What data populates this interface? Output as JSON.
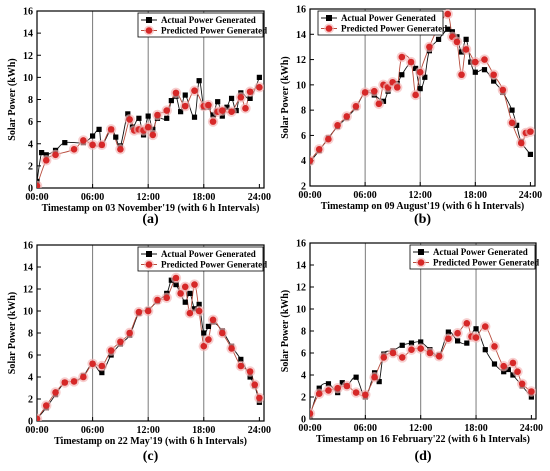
{
  "chart_data": [
    {
      "type": "line",
      "panel_label": "(a)",
      "xlabel": "Timestamp on 03 November'19 (with 6 h Intervals)",
      "ylabel": "Solar Power (kWh)",
      "xlim": [
        0,
        24.5
      ],
      "ylim": [
        0,
        16
      ],
      "xticks": [
        "00:00",
        "06:00",
        "12:00",
        "18:00",
        "24:00"
      ],
      "yticks": [
        "0",
        "2",
        "4",
        "6",
        "8",
        "10",
        "12",
        "14",
        "16"
      ],
      "vertical_gridlines_at_hours": [
        6,
        12,
        18
      ],
      "legend": "top-right",
      "series": [
        {
          "name": "Actual Power Generated",
          "x": [
            0,
            0.5,
            1,
            2,
            3,
            5,
            6,
            6.7,
            7,
            8,
            8.5,
            9,
            9.8,
            10.3,
            11,
            11.5,
            12,
            12.5,
            13,
            14,
            14.5,
            15,
            15.5,
            16,
            17,
            17.5,
            18,
            18.5,
            19,
            19.5,
            20,
            20.5,
            21,
            21.5,
            22,
            23,
            24
          ],
          "y": [
            0.6,
            3.2,
            3.0,
            3.4,
            4.1,
            4.1,
            4.7,
            5.3,
            3.9,
            5.3,
            4.6,
            3.8,
            6.7,
            5.5,
            6.3,
            4.8,
            6.5,
            5.3,
            6.3,
            6.3,
            7.9,
            8.3,
            6.9,
            8.4,
            6.4,
            9.7,
            7.3,
            7.3,
            6.6,
            7.8,
            6.5,
            7.3,
            8.1,
            7.0,
            8.6,
            8.1,
            10.0
          ]
        },
        {
          "name": "Predicted Power Generated",
          "x": [
            0,
            1,
            2,
            4,
            5,
            6,
            7,
            8,
            9,
            10,
            10.5,
            11,
            11.5,
            12,
            12.5,
            13,
            14,
            15,
            16,
            17,
            18,
            18.5,
            19,
            19.5,
            20,
            21,
            22,
            22.5,
            23,
            24
          ],
          "y": [
            0.2,
            2.5,
            3.0,
            3.5,
            4.3,
            3.9,
            3.9,
            5.3,
            3.5,
            6.2,
            5.2,
            5.3,
            5.2,
            5.5,
            4.8,
            6.6,
            7.0,
            8.6,
            7.4,
            8.8,
            7.4,
            7.5,
            6.0,
            6.9,
            7.0,
            6.9,
            8.2,
            7.2,
            8.7,
            9.1
          ]
        }
      ]
    },
    {
      "type": "line",
      "panel_label": "(b)",
      "xlabel": "Timestamp on 09 August'19 (with 6 h Intervals)",
      "ylabel": "Solar Power (kWh)",
      "xlim": [
        0,
        24.5
      ],
      "ylim": [
        2,
        16
      ],
      "xticks": [
        "00:00",
        "06:00",
        "12:00",
        "18:00",
        "24:00"
      ],
      "yticks": [
        "2",
        "4",
        "6",
        "8",
        "10",
        "12",
        "14",
        "16"
      ],
      "vertical_gridlines_at_hours": [
        6,
        12,
        18
      ],
      "legend": "top-left",
      "series": [
        {
          "name": "Actual Power Generated",
          "x": [
            0,
            1,
            2,
            3,
            4,
            5,
            6,
            7,
            8,
            8.5,
            9,
            9.5,
            10,
            11,
            11.5,
            12,
            12.5,
            13,
            14,
            15,
            15.5,
            16,
            16.5,
            17,
            17.5,
            18,
            19,
            20,
            21,
            22,
            22.5,
            23,
            24
          ],
          "y": [
            3.9,
            4.8,
            5.8,
            6.7,
            7.4,
            8.2,
            9.4,
            9.2,
            8.7,
            9.5,
            10.2,
            10.1,
            10.8,
            11.8,
            11.3,
            9.7,
            10.6,
            12.7,
            13.6,
            14.4,
            14.2,
            13.8,
            12.6,
            13.6,
            11.8,
            11.0,
            11.2,
            10.3,
            9.4,
            8.0,
            6.8,
            5.5,
            4.5
          ]
        },
        {
          "name": "Predicted Power Generated",
          "x": [
            0,
            1,
            2,
            3,
            4,
            5,
            6,
            7,
            7.5,
            8,
            8.5,
            9,
            9.5,
            10,
            11,
            11.5,
            12,
            13,
            14,
            15,
            15.5,
            16,
            16.5,
            17,
            18,
            19,
            20,
            21,
            22,
            23,
            23.5,
            24
          ],
          "y": [
            4.0,
            4.9,
            5.7,
            6.8,
            7.5,
            8.3,
            9.4,
            9.5,
            8.5,
            10.0,
            9.8,
            10.2,
            9.8,
            12.2,
            11.8,
            9.2,
            11.0,
            13.0,
            14.6,
            15.6,
            13.8,
            13.4,
            10.8,
            12.8,
            11.8,
            12.0,
            10.8,
            9.6,
            7.0,
            5.4,
            6.2,
            6.3
          ]
        }
      ]
    },
    {
      "type": "line",
      "panel_label": "(c)",
      "xlabel": "Timestamp on 22 May'19 (with 6 h Intervals)",
      "ylabel": "Solar Power (kWh)",
      "xlim": [
        0,
        24.5
      ],
      "ylim": [
        0,
        16
      ],
      "xticks": [
        "00:00",
        "06:00",
        "12:00",
        "18:00",
        "24:00"
      ],
      "yticks": [
        "0",
        "2",
        "4",
        "6",
        "8",
        "10",
        "12",
        "14",
        "16"
      ],
      "vertical_gridlines_at_hours": [
        6,
        12,
        18
      ],
      "legend": "top-right",
      "series": [
        {
          "name": "Actual Power Generated",
          "x": [
            0,
            1,
            2,
            3,
            4,
            5,
            6,
            7,
            8,
            9,
            10,
            11,
            12,
            13,
            14,
            14.5,
            15,
            15.5,
            16,
            16.5,
            17,
            17.5,
            18,
            18.5,
            19,
            20,
            21,
            22,
            23,
            23.5,
            24
          ],
          "y": [
            0.2,
            1.2,
            2.4,
            3.5,
            3.6,
            4.1,
            5.2,
            4.4,
            6.0,
            7.0,
            7.8,
            9.8,
            10.1,
            10.9,
            11.6,
            12.8,
            12.4,
            11.6,
            10.8,
            11.6,
            10.2,
            10.6,
            8.0,
            8.6,
            9.0,
            8.2,
            6.8,
            5.6,
            4.0,
            3.2,
            1.7
          ]
        },
        {
          "name": "Predicted Power Generated",
          "x": [
            0,
            1,
            2,
            3,
            4,
            5,
            6,
            7,
            8,
            9,
            10,
            11,
            12,
            13,
            14,
            15,
            15.5,
            16,
            16.5,
            17,
            17.5,
            18,
            18.5,
            19,
            20,
            21,
            22,
            23,
            23.5,
            24
          ],
          "y": [
            0.2,
            1.4,
            2.6,
            3.5,
            3.6,
            4.0,
            5.2,
            5.0,
            6.4,
            7.2,
            8.0,
            9.9,
            10.0,
            11.0,
            11.2,
            13.0,
            11.6,
            12.2,
            9.8,
            12.4,
            10.0,
            6.8,
            7.4,
            9.2,
            8.0,
            6.6,
            5.0,
            4.5,
            3.3,
            2.1
          ]
        }
      ]
    },
    {
      "type": "line",
      "panel_label": "(d)",
      "xlabel": "Timestamp on 16 February'22 (with 6 h Intervals)",
      "ylabel": "Solar Power (kWh)",
      "xlim": [
        0,
        24.5
      ],
      "ylim": [
        0,
        16
      ],
      "xticks": [
        "00:00",
        "06:00",
        "12:00",
        "18:00",
        "24:00"
      ],
      "yticks": [
        "0",
        "2",
        "4",
        "6",
        "8",
        "10",
        "12",
        "14",
        "16"
      ],
      "vertical_gridlines_at_hours": [
        6,
        12,
        18
      ],
      "legend": "top-right",
      "series": [
        {
          "name": "Actual Power Generated",
          "x": [
            0,
            1,
            2,
            3,
            3.5,
            4,
            5,
            6,
            7,
            7.5,
            8,
            9,
            10,
            11,
            12,
            13,
            14,
            15,
            16,
            17,
            18,
            19,
            20,
            21,
            21.5,
            22,
            23,
            24
          ],
          "y": [
            0.3,
            2.8,
            3.2,
            2.4,
            3.3,
            3.0,
            3.8,
            2.0,
            4.2,
            3.4,
            5.9,
            6.2,
            6.7,
            6.9,
            7.0,
            6.3,
            5.8,
            7.9,
            7.1,
            6.9,
            8.2,
            6.3,
            5.0,
            4.3,
            4.5,
            4.0,
            3.0,
            2.0
          ]
        },
        {
          "name": "Predicted Power Generated",
          "x": [
            0,
            1,
            2,
            3,
            4,
            5,
            6,
            7,
            8,
            9,
            10,
            11,
            12,
            13,
            14,
            15,
            16,
            17,
            17.5,
            18,
            19,
            20,
            21,
            22,
            22.5,
            23,
            24
          ],
          "y": [
            0.5,
            2.3,
            2.6,
            2.8,
            3.0,
            2.4,
            2.2,
            3.8,
            5.6,
            6.0,
            5.6,
            6.3,
            6.4,
            6.0,
            5.7,
            7.3,
            7.8,
            8.7,
            7.5,
            7.4,
            8.4,
            6.6,
            4.8,
            5.1,
            4.3,
            3.2,
            2.5
          ]
        }
      ]
    }
  ],
  "colors": {
    "actual_line": "#111111",
    "actual_marker": "#000000",
    "predicted_line": "#b84c3d",
    "predicted_marker": "#d62828",
    "predicted_halo": "#f2b3b3",
    "gridline": "#7a7a7a"
  }
}
